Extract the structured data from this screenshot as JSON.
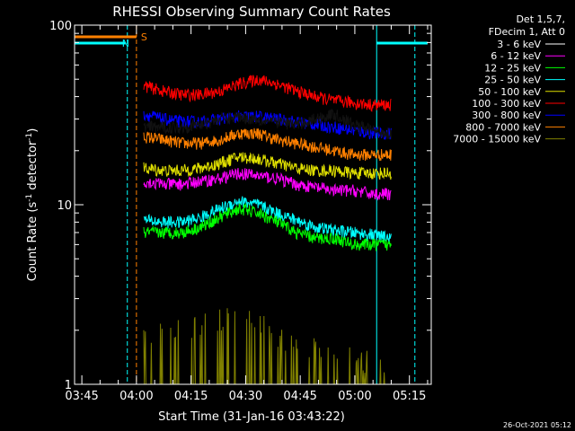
{
  "chart_data": {
    "type": "line",
    "title": "RHESSI Observing Summary Count Rates",
    "xlabel": "Start Time (31-Jan-16 03:43:22)",
    "ylabel": "Count Rate (s⁻¹ detector⁻¹)",
    "ylabel_parts": [
      "Count Rate (s",
      "-1",
      " detector",
      "-1",
      ")"
    ],
    "y_scale": "log",
    "ylim": [
      1,
      100
    ],
    "y_ticks": [
      "1",
      "10",
      "100"
    ],
    "xlim": [
      "03:43",
      "05:21"
    ],
    "x_ticks": [
      "03:45",
      "04:00",
      "04:15",
      "04:30",
      "04:45",
      "05:00",
      "05:15"
    ],
    "legend_header": [
      "Det 1,5,7,",
      "FDecim 1, Att 0"
    ],
    "legend_placement": "right",
    "series": [
      {
        "name": "3 - 6 keV",
        "color": "#000000",
        "start": "04:02",
        "end": "05:10",
        "values": [
          27,
          27,
          27,
          28,
          30,
          31,
          30,
          29,
          28,
          30,
          32,
          28,
          26,
          25
        ]
      },
      {
        "name": "6 - 12 keV",
        "color": "#ff00ff",
        "start": "04:02",
        "end": "05:10",
        "values": [
          13.5,
          13,
          13,
          13.5,
          14,
          15,
          14.5,
          14,
          13,
          12.5,
          12,
          12,
          11.5,
          11.5
        ]
      },
      {
        "name": "12 - 25 keV",
        "color": "#00ff00",
        "start": "04:02",
        "end": "05:10",
        "values": [
          7,
          7,
          7,
          7.5,
          8.5,
          9.5,
          9,
          8,
          7,
          6.5,
          6.5,
          6,
          6,
          6
        ]
      },
      {
        "name": "25 - 50 keV",
        "color": "#00ffff",
        "start": "04:02",
        "end": "05:10",
        "values": [
          8.2,
          8,
          8,
          8.5,
          9.5,
          10.5,
          10,
          9,
          8.2,
          7.5,
          7.2,
          7,
          6.8,
          6.5
        ]
      },
      {
        "name": "50 - 100 keV",
        "color": "#e0e000",
        "start": "04:02",
        "end": "05:10",
        "values": [
          16,
          15.5,
          15.5,
          16,
          17,
          18.5,
          18,
          17,
          16,
          15.5,
          15.5,
          15,
          15,
          15
        ]
      },
      {
        "name": "100 - 300 keV",
        "color": "#ff0000",
        "start": "04:02",
        "end": "05:10",
        "values": [
          46,
          43,
          41,
          41,
          43,
          47,
          50,
          47,
          43,
          40,
          38,
          37,
          36,
          36
        ]
      },
      {
        "name": "300 - 800 keV",
        "color": "#0000ff",
        "start": "04:02",
        "end": "05:10",
        "values": [
          32,
          30,
          29,
          29,
          30,
          31,
          31,
          30,
          29,
          28,
          27,
          26,
          25,
          25
        ]
      },
      {
        "name": "800 - 7000 keV",
        "color": "#ff8000",
        "start": "04:02",
        "end": "05:10",
        "values": [
          24,
          23,
          22,
          22,
          23,
          25,
          25,
          23,
          22,
          21,
          20,
          19,
          19,
          19
        ]
      },
      {
        "name": "7000 - 15000 keV",
        "color": "#808000",
        "start": "04:02",
        "end": "05:10",
        "values": [
          1.5,
          1.6,
          1.8,
          1.8,
          1.9,
          1.9,
          1.8,
          1.6,
          1.4,
          1.3,
          1.2,
          1.2,
          1.1,
          1
        ]
      }
    ],
    "flags": [
      {
        "label": "S",
        "color": "#ff8000",
        "start": "03:43",
        "end": "04:00"
      },
      {
        "label": "N",
        "color": "#00ffff",
        "start": "03:43",
        "end": "03:57"
      }
    ],
    "timestamp": "26-Oct-2021 05:12"
  }
}
